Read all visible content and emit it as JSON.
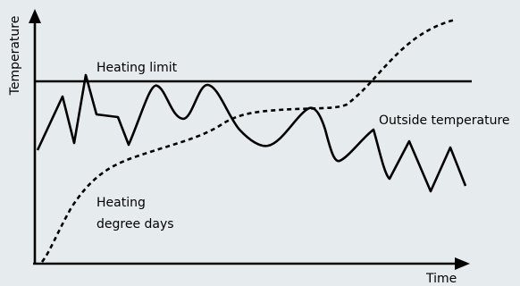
{
  "diagram": {
    "y_axis_label": "Temperature",
    "x_axis_label": "Time",
    "heating_limit_label": "Heating limit",
    "outside_temperature_label": "Outside temperature",
    "heating_degree_days_label_line1": "Heating",
    "heating_degree_days_label_line2": "degree days",
    "colors": {
      "background": "#e6ecee",
      "lines": "#000000"
    }
  }
}
